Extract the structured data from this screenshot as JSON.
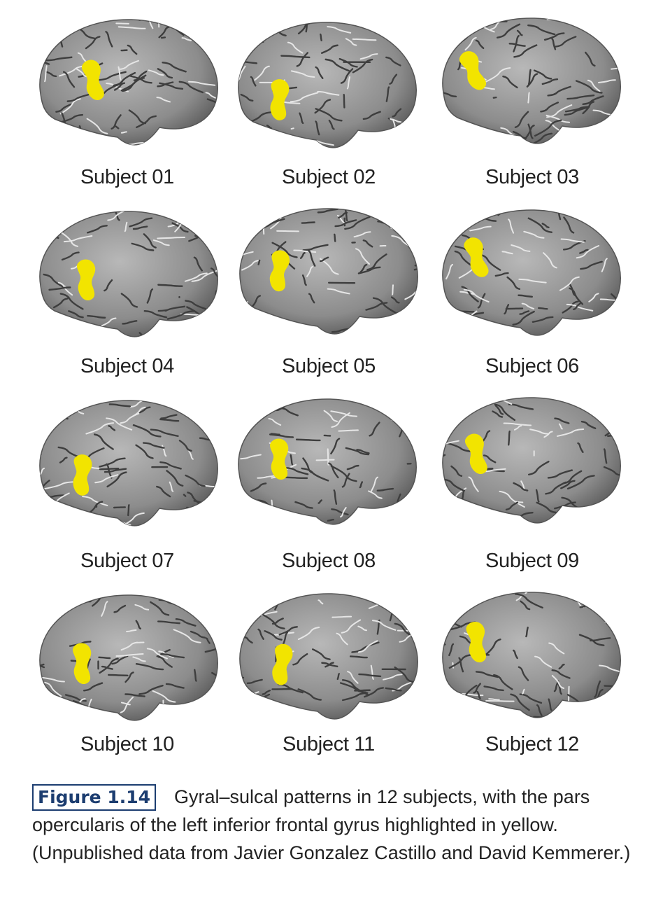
{
  "figure": {
    "panels": [
      {
        "label": "Subject 01"
      },
      {
        "label": "Subject 02"
      },
      {
        "label": "Subject 03"
      },
      {
        "label": "Subject 04"
      },
      {
        "label": "Subject 05"
      },
      {
        "label": "Subject 06"
      },
      {
        "label": "Subject 07"
      },
      {
        "label": "Subject 08"
      },
      {
        "label": "Subject 09"
      },
      {
        "label": "Subject 10"
      },
      {
        "label": "Subject 11"
      },
      {
        "label": "Subject 12"
      }
    ],
    "highlight_color": "#f2e400",
    "brain_color": "#8c8c8c"
  },
  "caption": {
    "figure_label": "Figure 1.14",
    "text": "Gyral–sulcal patterns in 12 subjects, with the pars opercularis of the left inferior frontal gyrus highlighted in yellow. (Unpublished data from Javier Gonzalez Castillo and David Kemmerer.)"
  }
}
